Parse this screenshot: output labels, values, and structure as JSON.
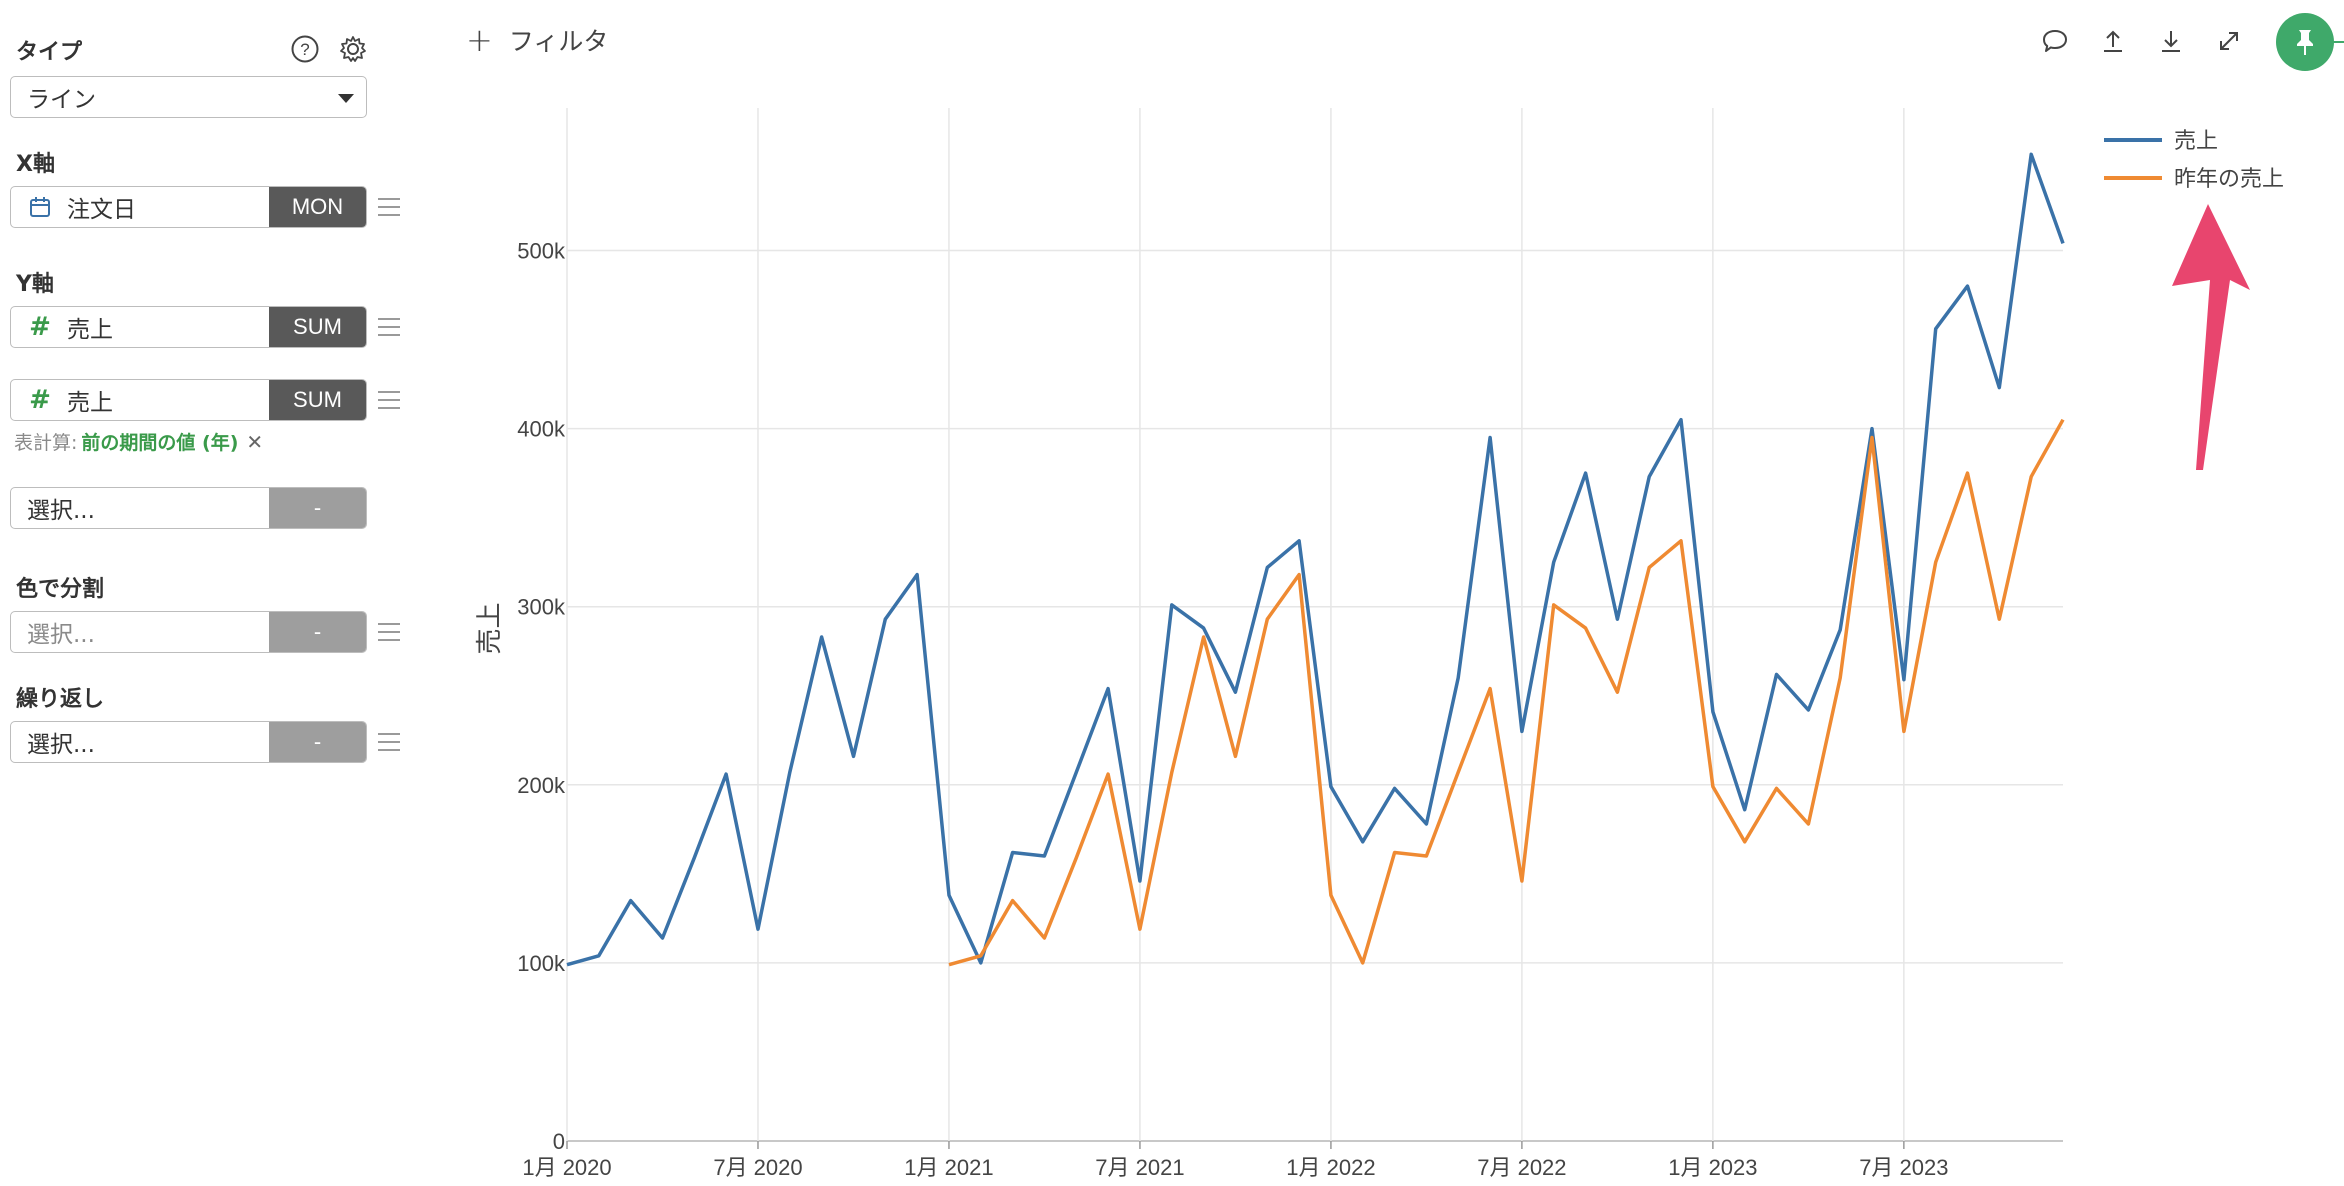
{
  "sidebar": {
    "type_label": "タイプ",
    "type_value": "ライン",
    "x_axis_label": "X軸",
    "x_field": {
      "name": "注文日",
      "agg": "MON"
    },
    "y_axis_label": "Y軸",
    "y_fields": [
      {
        "name": "売上",
        "agg": "SUM"
      },
      {
        "name": "売上",
        "agg": "SUM"
      }
    ],
    "calc_prefix": "表計算:",
    "calc_value": "前の期間の値 (年)",
    "calc_remove": "✕",
    "y_extra": {
      "placeholder": "選択...",
      "agg": "-"
    },
    "color_split_label": "色で分割",
    "color_split": {
      "placeholder": "選択...",
      "agg": "-"
    },
    "repeat_label": "繰り返し",
    "repeat": {
      "placeholder": "選択...",
      "agg": "-"
    }
  },
  "topbar": {
    "filter_label": "フィルタ",
    "icons": [
      "comment-icon",
      "upload-icon",
      "download-icon",
      "expand-icon",
      "pin-icon"
    ]
  },
  "colors": {
    "series_blue": "#3a72a8",
    "series_orange": "#ef8a32",
    "accent_green": "#3fa96a",
    "annotation_arrow": "#e8456e"
  },
  "chart_data": {
    "type": "line",
    "title": "",
    "xlabel": "",
    "ylabel": "売上",
    "ylim": [
      0,
      580000
    ],
    "yticks": [
      {
        "value": 0,
        "label": "0"
      },
      {
        "value": 100000,
        "label": "100k"
      },
      {
        "value": 200000,
        "label": "200k"
      },
      {
        "value": 300000,
        "label": "300k"
      },
      {
        "value": 400000,
        "label": "400k"
      },
      {
        "value": 500000,
        "label": "500k"
      }
    ],
    "xticks": [
      "1月 2020",
      "7月 2020",
      "1月 2021",
      "7月 2021",
      "1月 2022",
      "7月 2022",
      "1月 2023",
      "7月 2023"
    ],
    "x": [
      "2020-01",
      "2020-02",
      "2020-03",
      "2020-04",
      "2020-05",
      "2020-06",
      "2020-07",
      "2020-08",
      "2020-09",
      "2020-10",
      "2020-11",
      "2020-12",
      "2021-01",
      "2021-02",
      "2021-03",
      "2021-04",
      "2021-05",
      "2021-06",
      "2021-07",
      "2021-08",
      "2021-09",
      "2021-10",
      "2021-11",
      "2021-12",
      "2022-01",
      "2022-02",
      "2022-03",
      "2022-04",
      "2022-05",
      "2022-06",
      "2022-07",
      "2022-08",
      "2022-09",
      "2022-10",
      "2022-11",
      "2022-12",
      "2023-01",
      "2023-02",
      "2023-03",
      "2023-04",
      "2023-05",
      "2023-06",
      "2023-07",
      "2023-08",
      "2023-09",
      "2023-10",
      "2023-11",
      "2023-12"
    ],
    "grid": true,
    "legend_position": "top-right",
    "series": [
      {
        "name": "売上",
        "color": "#3a72a8",
        "values": [
          99000,
          104000,
          135000,
          114000,
          159000,
          206000,
          119000,
          207000,
          283000,
          216000,
          293000,
          318000,
          138000,
          100000,
          162000,
          160000,
          207000,
          254000,
          146000,
          301000,
          288000,
          252000,
          322000,
          337000,
          199000,
          168000,
          198000,
          178000,
          260000,
          395000,
          230000,
          325000,
          375000,
          293000,
          373000,
          405000,
          241000,
          186000,
          262000,
          242000,
          287000,
          400000,
          259000,
          456000,
          480000,
          423000,
          554000,
          504000
        ]
      },
      {
        "name": "昨年の売上",
        "color": "#ef8a32",
        "values": [
          null,
          null,
          null,
          null,
          null,
          null,
          null,
          null,
          null,
          null,
          null,
          null,
          99000,
          104000,
          135000,
          114000,
          159000,
          206000,
          119000,
          207000,
          283000,
          216000,
          293000,
          318000,
          138000,
          100000,
          162000,
          160000,
          207000,
          254000,
          146000,
          301000,
          288000,
          252000,
          322000,
          337000,
          199000,
          168000,
          198000,
          178000,
          260000,
          395000,
          230000,
          325000,
          375000,
          293000,
          373000,
          405000
        ]
      }
    ]
  }
}
